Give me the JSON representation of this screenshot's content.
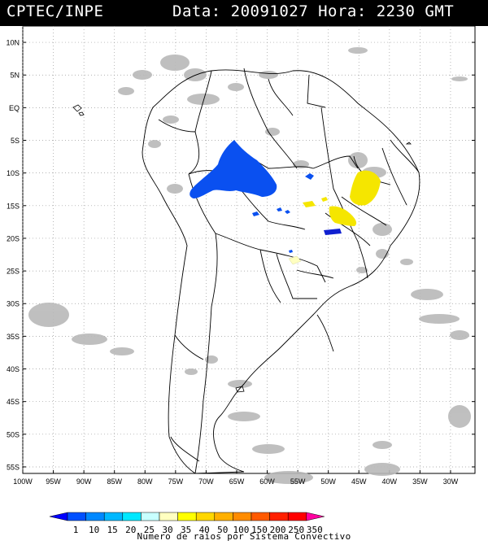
{
  "header": {
    "source": "CPTEC/INPE",
    "datetime": "Data: 20091027 Hora: 2230 GMT"
  },
  "map": {
    "lat_labels": [
      "10N",
      "5N",
      "EQ",
      "5S",
      "10S",
      "15S",
      "20S",
      "25S",
      "30S",
      "35S",
      "40S",
      "45S",
      "50S",
      "55S"
    ],
    "lat_values": [
      10,
      5,
      0,
      -5,
      -10,
      -15,
      -20,
      -25,
      -30,
      -35,
      -40,
      -45,
      -50,
      -55
    ],
    "lon_labels": [
      "100W",
      "95W",
      "90W",
      "85W",
      "80W",
      "75W",
      "70W",
      "65W",
      "60W",
      "55W",
      "50W",
      "45W",
      "40W",
      "35W",
      "30W"
    ],
    "lon_values": [
      -100,
      -95,
      -90,
      -85,
      -80,
      -75,
      -70,
      -65,
      -60,
      -55,
      -50,
      -45,
      -40,
      -35,
      -30
    ],
    "lat_range": [
      -56,
      12.5
    ],
    "lon_range": [
      -100,
      -26
    ],
    "grid": "dotted"
  },
  "legend": {
    "labels": [
      "1",
      "10",
      "15",
      "20",
      "25",
      "30",
      "35",
      "40",
      "50",
      "100",
      "150",
      "200",
      "250",
      "350"
    ],
    "colors": [
      "#0000ff",
      "#0050ff",
      "#0088ff",
      "#00b8ff",
      "#00e8ff",
      "#c8ffff",
      "#ffffc0",
      "#ffff00",
      "#ffd700",
      "#ffb000",
      "#ff8c00",
      "#ff5a00",
      "#ff2000",
      "#ff0000",
      "#ff00a0"
    ],
    "title": "Numero de raios por Sistema Convectivo"
  },
  "colors": {
    "cloud": "#b8b8b8",
    "flash_blue": "#0a50f0",
    "flash_yellow": "#f5e600",
    "flash_darkblue": "#1020d0",
    "flash_paleyellow": "#ffffc0"
  }
}
